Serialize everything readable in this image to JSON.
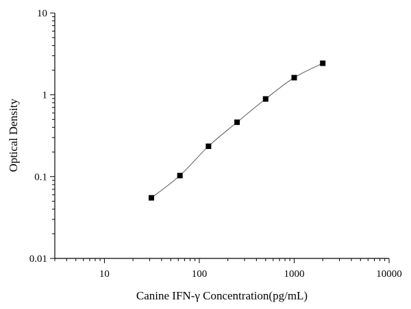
{
  "chart_data": {
    "type": "scatter",
    "title": "",
    "xlabel": "Canine IFN-γ  Concentration(pg/mL)",
    "ylabel": "Optical Density",
    "xscale": "log",
    "yscale": "log",
    "xlim": [
      3,
      10000
    ],
    "ylim": [
      0.01,
      10
    ],
    "x_ticks": [
      10,
      100,
      1000,
      10000
    ],
    "x_tick_labels": [
      "10",
      "100",
      "1000",
      "10000"
    ],
    "y_ticks": [
      0.01,
      0.1,
      1,
      10
    ],
    "y_tick_labels": [
      "0.01",
      "0.1",
      "1",
      "10"
    ],
    "grid": false,
    "legend": "none",
    "marker": "square",
    "marker_color": "#000000",
    "line_color": "#555555",
    "series": [
      {
        "x": [
          31.25,
          62.5,
          125,
          250,
          500,
          1000,
          2000
        ],
        "y": [
          0.055,
          0.103,
          0.235,
          0.462,
          0.89,
          1.62,
          2.43
        ]
      }
    ]
  }
}
